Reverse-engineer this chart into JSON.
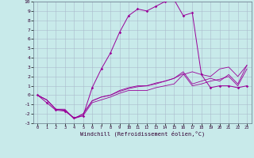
{
  "xlabel": "Windchill (Refroidissement éolien,°C)",
  "bg_color": "#c8eaea",
  "line_color": "#990099",
  "grid_color": "#aabbcc",
  "xlim": [
    -0.5,
    23.5
  ],
  "ylim": [
    -3,
    10
  ],
  "xticks": [
    0,
    1,
    2,
    3,
    4,
    5,
    6,
    7,
    8,
    9,
    10,
    11,
    12,
    13,
    14,
    15,
    16,
    17,
    18,
    19,
    20,
    21,
    22,
    23
  ],
  "yticks": [
    -3,
    -2,
    -1,
    0,
    1,
    2,
    3,
    4,
    5,
    6,
    7,
    8,
    9,
    10
  ],
  "main_x": [
    0,
    1,
    2,
    3,
    4,
    5,
    6,
    7,
    8,
    9,
    10,
    11,
    12,
    13,
    14,
    15,
    16,
    17,
    18,
    19,
    20,
    21,
    22,
    23
  ],
  "main_y": [
    0.0,
    -0.8,
    -1.6,
    -1.7,
    -2.4,
    -2.2,
    0.8,
    2.8,
    4.5,
    6.7,
    8.5,
    9.2,
    9.0,
    9.5,
    10.0,
    10.2,
    8.5,
    8.8,
    2.2,
    0.8,
    1.0,
    1.0,
    0.8,
    1.0
  ],
  "line2_x": [
    0,
    1,
    2,
    3,
    4,
    5,
    6,
    7,
    8,
    9,
    10,
    11,
    12,
    13,
    14,
    15,
    16,
    17,
    18,
    19,
    20,
    21,
    22,
    23
  ],
  "line2_y": [
    0.0,
    -0.5,
    -1.5,
    -1.5,
    -2.5,
    -2.2,
    -0.8,
    -0.5,
    -0.2,
    0.2,
    0.5,
    0.5,
    0.5,
    0.8,
    1.0,
    1.2,
    2.2,
    2.5,
    2.2,
    2.0,
    2.8,
    3.0,
    2.0,
    3.2
  ],
  "line3_x": [
    0,
    1,
    2,
    3,
    4,
    5,
    6,
    7,
    8,
    9,
    10,
    11,
    12,
    13,
    14,
    15,
    16,
    17,
    18,
    19,
    20,
    21,
    22,
    23
  ],
  "line3_y": [
    0.0,
    -0.5,
    -1.5,
    -1.6,
    -2.5,
    -2.0,
    -0.6,
    -0.2,
    0.0,
    0.5,
    0.8,
    1.0,
    1.0,
    1.2,
    1.5,
    1.8,
    2.5,
    1.2,
    1.5,
    1.8,
    1.5,
    2.2,
    1.2,
    3.2
  ],
  "line4_x": [
    0,
    1,
    2,
    3,
    4,
    5,
    6,
    7,
    8,
    9,
    10,
    11,
    12,
    13,
    14,
    15,
    16,
    17,
    18,
    19,
    20,
    21,
    22,
    23
  ],
  "line4_y": [
    0.0,
    -0.5,
    -1.5,
    -1.6,
    -2.5,
    -2.0,
    -0.6,
    -0.2,
    0.0,
    0.4,
    0.7,
    0.9,
    1.0,
    1.3,
    1.5,
    1.8,
    2.3,
    1.0,
    1.2,
    1.5,
    1.7,
    2.0,
    1.0,
    2.8
  ]
}
